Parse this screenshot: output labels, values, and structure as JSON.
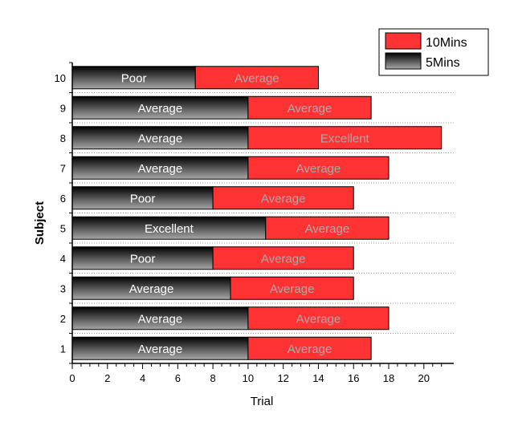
{
  "chart_data": {
    "type": "bar",
    "orientation": "horizontal",
    "stacked": true,
    "xlabel": "Trial",
    "ylabel": "Subject",
    "xlim": [
      0,
      21.7
    ],
    "x_ticks": [
      0,
      2,
      4,
      6,
      8,
      10,
      12,
      14,
      16,
      18,
      20
    ],
    "categories": [
      "1",
      "2",
      "3",
      "4",
      "5",
      "6",
      "7",
      "8",
      "9",
      "10"
    ],
    "grid": "horizontal dotted",
    "legend_position": "top-right",
    "series": [
      {
        "name": "5Mins",
        "color_dark": "#000000",
        "color_light": "#a8a8a8",
        "values": [
          10,
          10,
          9,
          8,
          11,
          8,
          10,
          10,
          10,
          7
        ],
        "labels": [
          "Average",
          "Average",
          "Average",
          "Poor",
          "Excellent",
          "Poor",
          "Average",
          "Average",
          "Average",
          "Poor"
        ],
        "label_color": "#ffffff"
      },
      {
        "name": "10Mins",
        "color": "#ff3333",
        "values": [
          7,
          8,
          7,
          8,
          7,
          8,
          8,
          11,
          7,
          7
        ],
        "labels": [
          "Average",
          "Average",
          "Average",
          "Average",
          "Average",
          "Average",
          "Average",
          "Excellent",
          "Average",
          "Average"
        ],
        "label_color": "#aaaaaa"
      }
    ]
  }
}
